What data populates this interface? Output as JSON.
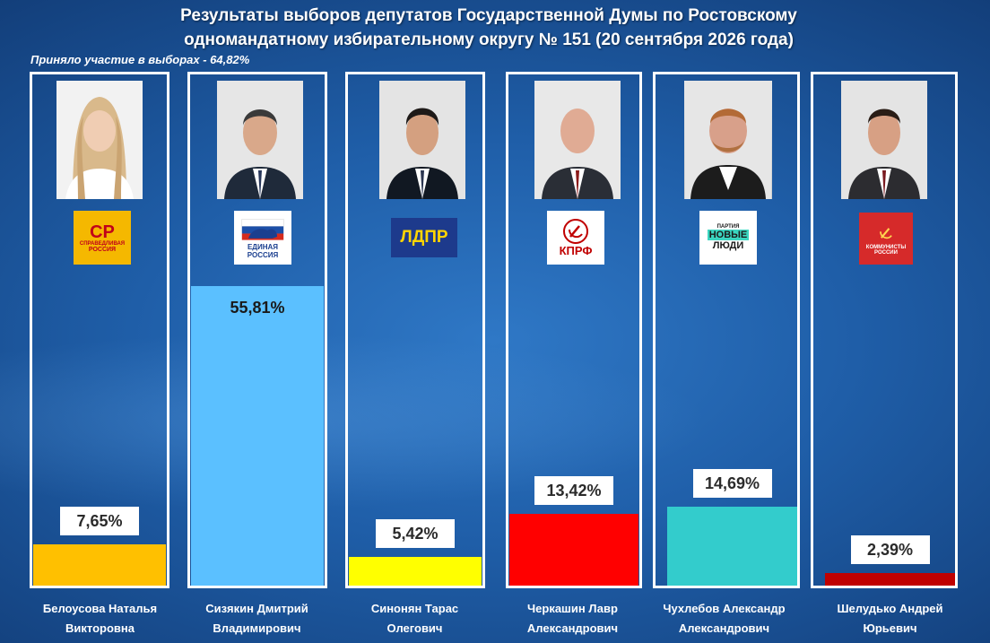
{
  "header": {
    "title_line1": "Результаты выборов депутатов Государственной Думы по Ростовскому",
    "title_line2": "одномандатному избирательному округу № 151  (20 сентября 2026 года)",
    "turnout": "Приняло участие в выборах - 64,82%"
  },
  "colors": {
    "frame": "#ffffff",
    "background": "#1f5ea8"
  },
  "chart_data": {
    "type": "bar",
    "title": "Результаты выборов депутатов Государственной Думы по Ростовскому одномандатному избирательному округу № 151  (20 сентября 2026 года)",
    "xlabel": "",
    "ylabel": "",
    "ylim": [
      0,
      56
    ],
    "grid": false,
    "categories": [
      "Белоусова Наталья Викторовна",
      "Сизякин Дмитрий Владимирович",
      "Синонян Тарас Олегович",
      "Черкашин Лавр Александрович",
      "Чухлебов Александр Александрович",
      "Шелудько Андрей Юрьевич"
    ],
    "values": [
      7.65,
      55.81,
      5.42,
      13.42,
      14.69,
      2.39
    ],
    "value_labels": [
      "7,65%",
      "55,81%",
      "5,42%",
      "13,42%",
      "14,69%",
      "2,39%"
    ],
    "bar_colors": [
      "#ffc000",
      "#5bc0ff",
      "#ffff00",
      "#ff0000",
      "#33cccc",
      "#c00000"
    ]
  },
  "candidates": [
    {
      "name_line1": "Белоусова Наталья",
      "name_line2": "Викторовна",
      "party_icon": "spravedlivaya-rossiya-logo",
      "logo_main": "СР",
      "logo_sub1": "СПРАВЕДЛИВАЯ",
      "logo_sub2": "РОССИЯ"
    },
    {
      "name_line1": "Сизякин Дмитрий",
      "name_line2": "Владимирович",
      "party_icon": "edinaya-rossiya-logo",
      "logo_main": "",
      "logo_sub1": "ЕДИНАЯ",
      "logo_sub2": "РОССИЯ"
    },
    {
      "name_line1": "Синонян Тарас",
      "name_line2": "Олегович",
      "party_icon": "ldpr-logo",
      "logo_main": "ЛДПР",
      "logo_sub1": "",
      "logo_sub2": ""
    },
    {
      "name_line1": "Черкашин Лавр",
      "name_line2": "Александрович",
      "party_icon": "kprf-logo",
      "logo_main": "КПРФ",
      "logo_sub1": "",
      "logo_sub2": ""
    },
    {
      "name_line1": "Чухлебов Александр",
      "name_line2": "Александрович",
      "party_icon": "novye-lyudi-logo",
      "logo_main": "НОВЫЕ",
      "logo_sub1": "ПАРТИЯ",
      "logo_sub2": "ЛЮДИ"
    },
    {
      "name_line1": "Шелудько Андрей",
      "name_line2": "Юрьевич",
      "party_icon": "kommunisty-rossii-logo",
      "logo_main": "",
      "logo_sub1": "КОММУНИСТЫ",
      "logo_sub2": "РОССИИ"
    }
  ]
}
